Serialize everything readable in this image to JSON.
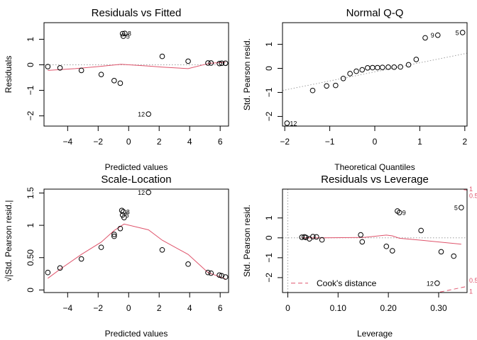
{
  "colors": {
    "smooth": "#DF536B",
    "reference": "#9e9e9e",
    "points": "#000000"
  },
  "chart_data": [
    {
      "type": "scatter",
      "title": "Residuals vs Fitted",
      "xlabel": "Predicted values",
      "ylabel": "Residuals",
      "xlim": [
        -5.55,
        6.55
      ],
      "ylim": [
        -2.4,
        1.65
      ],
      "xticks": [
        -4,
        -2,
        0,
        2,
        4,
        6
      ],
      "yticks": [
        -2,
        -1,
        0,
        1
      ],
      "x": [
        -5.3,
        -4.5,
        -3.1,
        -1.8,
        -0.95,
        -0.55,
        -0.4,
        -0.35,
        -0.25,
        1.3,
        2.2,
        3.9,
        5.2,
        5.4,
        5.95,
        6.1,
        6.35
      ],
      "y": [
        -0.07,
        -0.12,
        -0.22,
        -0.38,
        -0.62,
        -0.72,
        1.22,
        1.12,
        1.23,
        -1.93,
        0.33,
        0.14,
        0.07,
        0.07,
        0.05,
        0.06,
        0.06
      ],
      "point_labels": [
        {
          "index": 9,
          "text": "12",
          "side": "left"
        },
        {
          "index": 8,
          "text": "8",
          "side": "right"
        },
        {
          "index": 7,
          "text": "5",
          "side": "right"
        }
      ],
      "reference_y": 0,
      "smooth": {
        "x": [
          -5.3,
          -3.5,
          -2.0,
          -0.5,
          1.3,
          2.2,
          3.9,
          5.3,
          6.35
        ],
        "y": [
          -0.22,
          -0.15,
          -0.07,
          0.02,
          -0.05,
          -0.09,
          -0.15,
          0.06,
          0.1
        ]
      }
    },
    {
      "type": "scatter",
      "title": "Normal Q-Q",
      "xlabel": "Theoretical Quantiles",
      "ylabel": "Std. Pearson resid.",
      "xlim": [
        -2.05,
        2.05
      ],
      "ylim": [
        -2.4,
        1.9
      ],
      "xticks": [
        -2,
        -1,
        0,
        1,
        2
      ],
      "yticks": [
        -2,
        -1,
        0,
        1
      ],
      "x": [
        -1.95,
        -1.38,
        -1.07,
        -0.87,
        -0.7,
        -0.55,
        -0.41,
        -0.28,
        -0.16,
        -0.05,
        0.06,
        0.17,
        0.3,
        0.43,
        0.57,
        0.75,
        0.92,
        1.12,
        1.4,
        1.95
      ],
      "y": [
        -2.28,
        -0.92,
        -0.73,
        -0.71,
        -0.42,
        -0.22,
        -0.12,
        -0.06,
        0.02,
        0.03,
        0.03,
        0.04,
        0.05,
        0.05,
        0.06,
        0.15,
        0.37,
        1.27,
        1.38,
        1.49
      ],
      "point_labels": [
        {
          "index": 0,
          "text": "12",
          "side": "right"
        },
        {
          "index": 18,
          "text": "9",
          "side": "left"
        },
        {
          "index": 19,
          "text": "5",
          "side": "left"
        }
      ],
      "reference_line": {
        "x": [
          -2.05,
          2.05
        ],
        "y": [
          -0.92,
          0.63
        ]
      }
    },
    {
      "type": "scatter",
      "title": "Scale-Location",
      "xlabel": "Predicted values",
      "ylabel": "√|Std. Pearson resid.|",
      "xlim": [
        -5.55,
        6.55
      ],
      "ylim": [
        -0.04,
        1.56
      ],
      "xticks": [
        -4,
        -2,
        0,
        2,
        4,
        6
      ],
      "yticks": [
        0.0,
        0.5,
        1.0,
        1.5
      ],
      "x": [
        -5.3,
        -4.5,
        -3.1,
        -1.8,
        -0.95,
        -0.95,
        -0.55,
        -0.45,
        -0.4,
        -0.35,
        -0.3,
        1.3,
        2.2,
        3.9,
        5.2,
        5.4,
        5.95,
        6.1,
        6.35
      ],
      "y": [
        0.27,
        0.34,
        0.48,
        0.66,
        0.83,
        0.86,
        0.95,
        1.23,
        1.16,
        1.21,
        1.12,
        1.51,
        0.62,
        0.4,
        0.27,
        0.26,
        0.23,
        0.22,
        0.2
      ],
      "point_labels": [
        {
          "index": 11,
          "text": "12",
          "side": "left"
        },
        {
          "index": 9,
          "text": "8",
          "side": "right"
        },
        {
          "index": 8,
          "text": "5",
          "side": "right"
        }
      ],
      "smooth": {
        "x": [
          -5.3,
          -4.5,
          -3.1,
          -1.8,
          -0.95,
          -0.3,
          1.3,
          2.2,
          3.9,
          5.2,
          6.35
        ],
        "y": [
          0.18,
          0.32,
          0.55,
          0.74,
          0.92,
          1.02,
          0.93,
          0.77,
          0.55,
          0.27,
          0.17
        ]
      }
    },
    {
      "type": "scatter",
      "title": "Residuals vs Leverage",
      "xlabel": "Leverage",
      "ylabel": "Std. Pearson resid.",
      "xlim": [
        -0.0105,
        0.3565
      ],
      "ylim": [
        -2.75,
        2.45
      ],
      "xticks": [
        0.0,
        0.1,
        0.2,
        0.3
      ],
      "yticks": [
        -2,
        -1,
        0,
        1
      ],
      "x": [
        0.028,
        0.033,
        0.036,
        0.043,
        0.05,
        0.057,
        0.068,
        0.145,
        0.148,
        0.196,
        0.208,
        0.218,
        0.222,
        0.265,
        0.297,
        0.305,
        0.33,
        0.345
      ],
      "y": [
        0.03,
        0.05,
        0.02,
        -0.05,
        0.06,
        0.05,
        -0.1,
        0.15,
        -0.2,
        -0.43,
        -0.65,
        1.35,
        1.27,
        0.37,
        -2.28,
        -0.7,
        -0.92,
        1.52
      ],
      "point_labels": [
        {
          "index": 14,
          "text": "12",
          "side": "left"
        },
        {
          "index": 12,
          "text": "9",
          "side": "right"
        },
        {
          "index": 17,
          "text": "5",
          "side": "left"
        }
      ],
      "reference_y": 0,
      "smooth": {
        "x": [
          0.028,
          0.068,
          0.15,
          0.196,
          0.208,
          0.222,
          0.265,
          0.345
        ],
        "y": [
          0.0,
          0.0,
          0.02,
          0.14,
          0.1,
          -0.02,
          -0.12,
          -0.32
        ]
      },
      "cook_contours": [
        {
          "label": "0.5",
          "x": [
            0.225,
            0.26,
            0.3,
            0.3565
          ],
          "y": [
            3.0,
            2.8,
            2.6,
            2.4
          ]
        },
        {
          "label": "1",
          "x": [
            0.25,
            0.3,
            0.3565
          ],
          "y": [
            3.7,
            3.4,
            3.1
          ]
        },
        {
          "label": "0.5",
          "x": [
            0.1,
            0.15,
            0.2,
            0.25,
            0.3,
            0.3565
          ],
          "y": [
            -4.22,
            -3.84,
            -3.35,
            -2.99,
            -2.74,
            -2.44
          ]
        },
        {
          "label": "1",
          "x": [
            0.2,
            0.25,
            0.3,
            0.3565
          ],
          "y": [
            -4.78,
            -4.26,
            -3.83,
            -3.45
          ]
        }
      ],
      "cook_labels": [
        {
          "label": "0.5",
          "y": 2.12
        },
        {
          "label": "1",
          "y": 2.45
        },
        {
          "label": "0.5",
          "y": -2.15
        },
        {
          "label": "1",
          "y": -2.7
        }
      ],
      "legend": {
        "text": "Cook's distance",
        "position": "bottom-left"
      }
    }
  ]
}
